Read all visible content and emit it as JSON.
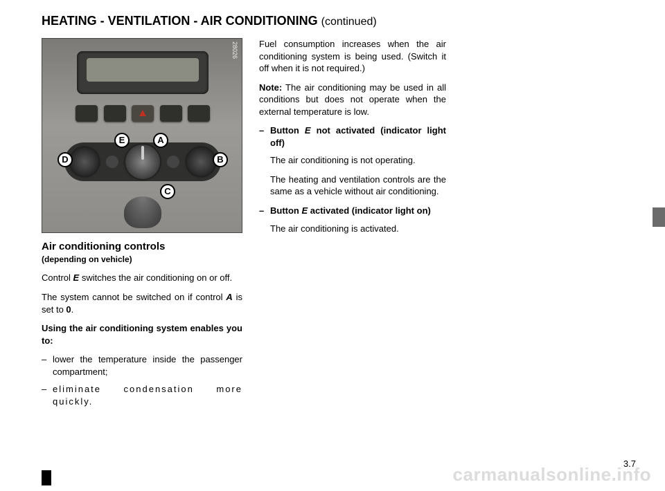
{
  "title_main": "HEATING - VENTILATION - AIR CONDITIONING ",
  "title_cont": "(continued)",
  "figure": {
    "photo_id": "28026",
    "callouts": {
      "E": "E",
      "A": "A",
      "D": "D",
      "B": "B",
      "C": "C"
    }
  },
  "left": {
    "subhead": "Air conditioning controls",
    "subcap": "(depending on vehicle)",
    "p1_a": "Control ",
    "p1_e": "E",
    "p1_b": " switches the air conditioning on or off.",
    "p2_a": "The system cannot be switched on if control ",
    "p2_A": "A",
    "p2_b": " is set to ",
    "p2_0": "0",
    "p2_c": ".",
    "p3": "Using the air conditioning system enables you to:",
    "li1": "lower the temperature inside the passenger compartment;",
    "li2": "eliminate condensation more quickly."
  },
  "mid": {
    "p1": "Fuel consumption increases when the air conditioning system is being used. (Switch it off when it is not required.)",
    "p2_a": "Note:",
    "p2_b": " The air conditioning may be used in all conditions but does not operate when the external temperature is low.",
    "li1_a": "Button ",
    "li1_e": "E",
    "li1_b": " not activated (indicator light off)",
    "li1_p1": "The air conditioning is not operating.",
    "li1_p2": "The heating and ventilation controls are the same as a vehicle without air conditioning.",
    "li2_a": "Button ",
    "li2_e": "E",
    "li2_b": " activated (indicator light on)",
    "li2_p1": "The air conditioning is activated."
  },
  "page_number": "3.7",
  "watermark": "carmanualsonline.info",
  "colors": {
    "text": "#000000",
    "bg": "#ffffff",
    "tab": "#6b6b6b",
    "watermark": "#dcdcdc"
  }
}
